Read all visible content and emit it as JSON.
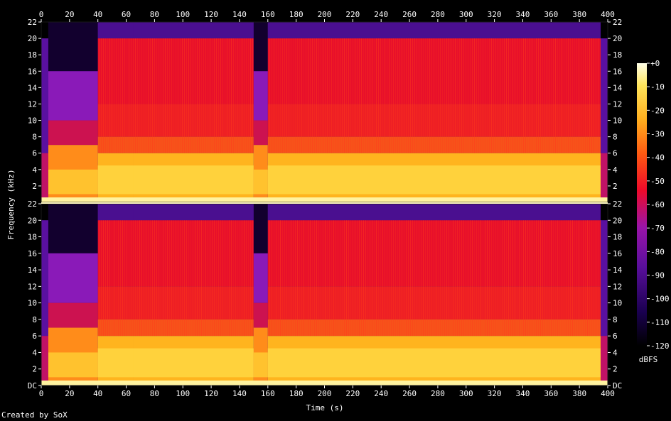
{
  "chart_data": {
    "type": "heatmap",
    "title": "",
    "xlabel": "Time (s)",
    "ylabel": "Frequency (kHz)",
    "xlim": [
      0,
      400
    ],
    "x_ticks": [
      "0",
      "20",
      "40",
      "60",
      "80",
      "100",
      "120",
      "140",
      "160",
      "180",
      "200",
      "220",
      "240",
      "260",
      "280",
      "300",
      "320",
      "340",
      "360",
      "380",
      "400"
    ],
    "ylim_khz": [
      0,
      22
    ],
    "channels": [
      {
        "y_ticks": [
          "2",
          "4",
          "6",
          "8",
          "10",
          "12",
          "14",
          "16",
          "18",
          "20",
          "22"
        ]
      },
      {
        "y_ticks": [
          "DC",
          "2",
          "4",
          "6",
          "8",
          "10",
          "12",
          "14",
          "16",
          "18",
          "20",
          "22"
        ]
      }
    ],
    "colorbar": {
      "label": "dBFS",
      "range": [
        -120,
        0
      ],
      "ticks": [
        "+0",
        "-10",
        "-20",
        "-30",
        "-40",
        "-50",
        "-60",
        "-70",
        "-80",
        "-90",
        "-100",
        "-110",
        "-120"
      ]
    },
    "segments_s": [
      {
        "start": 0,
        "end": 5,
        "cutoff_khz": 20,
        "level": "quiet"
      },
      {
        "start": 5,
        "end": 40,
        "cutoff_khz": 16,
        "level": "low"
      },
      {
        "start": 40,
        "end": 65,
        "cutoff_khz": 20,
        "level": "loud"
      },
      {
        "start": 65,
        "end": 150,
        "cutoff_khz": 20,
        "level": "loud"
      },
      {
        "start": 150,
        "end": 160,
        "cutoff_khz": 16,
        "level": "low"
      },
      {
        "start": 160,
        "end": 395,
        "cutoff_khz": 20,
        "level": "loud"
      },
      {
        "start": 395,
        "end": 400,
        "cutoff_khz": 20,
        "level": "quiet"
      }
    ],
    "colors": [
      "#000000",
      "#1a0050",
      "#5a0f9c",
      "#8a1abf",
      "#c21480",
      "#ee0a2a",
      "#ff5a12",
      "#ffae1e",
      "#ffe45a",
      "#ffffd0"
    ]
  },
  "credit": "Created by SoX"
}
